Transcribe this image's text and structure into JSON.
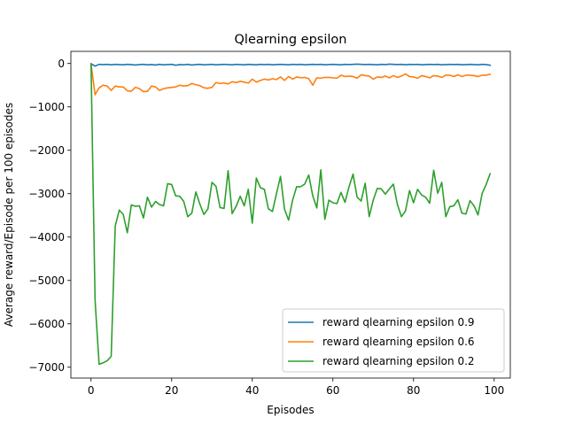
{
  "chart_data": {
    "type": "line",
    "title": "Qlearning epsilon",
    "xlabel": "Episodes",
    "ylabel": "Average reward/Episode per 100 episodes",
    "xlim": [
      -5,
      104
    ],
    "ylim": [
      -7250,
      280
    ],
    "x_ticks": [
      0,
      20,
      40,
      60,
      80,
      100
    ],
    "y_ticks": [
      0,
      -1000,
      -2000,
      -3000,
      -4000,
      -5000,
      -6000,
      -7000
    ],
    "x_tick_labels": [
      "0",
      "20",
      "40",
      "60",
      "80",
      "100"
    ],
    "y_tick_labels": [
      "0",
      "−1000",
      "−2000",
      "−3000",
      "−4000",
      "−5000",
      "−6000",
      "−7000"
    ],
    "grid": false,
    "legend_position": "lower right",
    "x": [
      0,
      1,
      2,
      3,
      4,
      5,
      6,
      7,
      8,
      9,
      10,
      11,
      12,
      13,
      14,
      15,
      16,
      17,
      18,
      19,
      20,
      21,
      22,
      23,
      24,
      25,
      26,
      27,
      28,
      29,
      30,
      31,
      32,
      33,
      34,
      35,
      36,
      37,
      38,
      39,
      40,
      41,
      42,
      43,
      44,
      45,
      46,
      47,
      48,
      49,
      50,
      51,
      52,
      53,
      54,
      55,
      56,
      57,
      58,
      59,
      60,
      61,
      62,
      63,
      64,
      65,
      66,
      67,
      68,
      69,
      70,
      71,
      72,
      73,
      74,
      75,
      76,
      77,
      78,
      79,
      80,
      81,
      82,
      83,
      84,
      85,
      86,
      87,
      88,
      89,
      90,
      91,
      92,
      93,
      94,
      95,
      96,
      97,
      98,
      99
    ],
    "series": [
      {
        "name": "reward qlearning epsilon 0.9",
        "color": "#1f77b4",
        "values": [
          -5,
          -60,
          -20,
          -25,
          -20,
          -30,
          -20,
          -25,
          -30,
          -20,
          -25,
          -35,
          -25,
          -20,
          -30,
          -25,
          -35,
          -20,
          -30,
          -25,
          -20,
          -40,
          -25,
          -30,
          -20,
          -35,
          -25,
          -20,
          -30,
          -25,
          -20,
          -30,
          -25,
          -20,
          -25,
          -30,
          -20,
          -25,
          -30,
          -20,
          -25,
          -30,
          -20,
          -25,
          -20,
          -30,
          -25,
          -20,
          -25,
          -30,
          -20,
          -25,
          -20,
          -30,
          -25,
          -20,
          -25,
          -20,
          -30,
          -25,
          -20,
          -25,
          -30,
          -20,
          -25,
          -20,
          -15,
          -20,
          -25,
          -20,
          -25,
          -30,
          -20,
          -25,
          -15,
          -20,
          -25,
          -20,
          -30,
          -20,
          -25,
          -20,
          -30,
          -25,
          -20,
          -25,
          -20,
          -30,
          -25,
          -20,
          -25,
          -20,
          -30,
          -25,
          -20,
          -25,
          -30,
          -20,
          -25,
          -40
        ]
      },
      {
        "name": "reward qlearning epsilon 0.6",
        "color": "#ff7f0e",
        "values": [
          -10,
          -720,
          -560,
          -500,
          -520,
          -620,
          -520,
          -540,
          -540,
          -630,
          -640,
          -550,
          -580,
          -650,
          -640,
          -520,
          -540,
          -620,
          -580,
          -560,
          -550,
          -540,
          -500,
          -520,
          -510,
          -460,
          -490,
          -510,
          -560,
          -570,
          -550,
          -440,
          -460,
          -450,
          -470,
          -420,
          -440,
          -410,
          -430,
          -450,
          -360,
          -430,
          -390,
          -360,
          -380,
          -350,
          -370,
          -310,
          -390,
          -300,
          -360,
          -310,
          -330,
          -320,
          -350,
          -500,
          -330,
          -340,
          -320,
          -320,
          -330,
          -340,
          -270,
          -300,
          -290,
          -300,
          -340,
          -260,
          -280,
          -290,
          -360,
          -310,
          -320,
          -290,
          -330,
          -280,
          -320,
          -290,
          -240,
          -300,
          -310,
          -340,
          -280,
          -300,
          -330,
          -280,
          -290,
          -320,
          -270,
          -270,
          -300,
          -260,
          -300,
          -270,
          -270,
          -280,
          -300,
          -270,
          -270,
          -250
        ]
      },
      {
        "name": "reward qlearning epsilon 0.2",
        "color": "#2ca02c",
        "values": [
          -10,
          -5450,
          -6930,
          -6900,
          -6850,
          -6750,
          -3750,
          -3380,
          -3480,
          -3900,
          -3260,
          -3290,
          -3280,
          -3560,
          -3080,
          -3310,
          -3180,
          -3250,
          -3280,
          -2770,
          -2790,
          -3050,
          -3060,
          -3180,
          -3530,
          -3450,
          -2960,
          -3240,
          -3480,
          -3350,
          -2740,
          -2830,
          -3320,
          -3340,
          -2470,
          -3460,
          -3290,
          -3060,
          -3280,
          -2900,
          -3680,
          -2640,
          -2860,
          -2900,
          -3350,
          -3410,
          -3000,
          -2600,
          -3360,
          -3610,
          -3150,
          -2840,
          -2840,
          -2780,
          -2570,
          -3050,
          -3330,
          -2450,
          -3590,
          -3150,
          -3210,
          -3230,
          -2970,
          -3200,
          -2840,
          -2550,
          -3080,
          -3170,
          -2760,
          -3530,
          -3150,
          -2880,
          -2890,
          -3010,
          -2890,
          -2780,
          -3250,
          -3530,
          -3400,
          -2930,
          -3210,
          -2900,
          -3030,
          -3080,
          -3220,
          -2460,
          -2990,
          -2740,
          -3530,
          -3300,
          -3280,
          -3140,
          -3450,
          -3470,
          -3160,
          -3280,
          -3490,
          -3000,
          -2790,
          -2540
        ]
      }
    ]
  }
}
